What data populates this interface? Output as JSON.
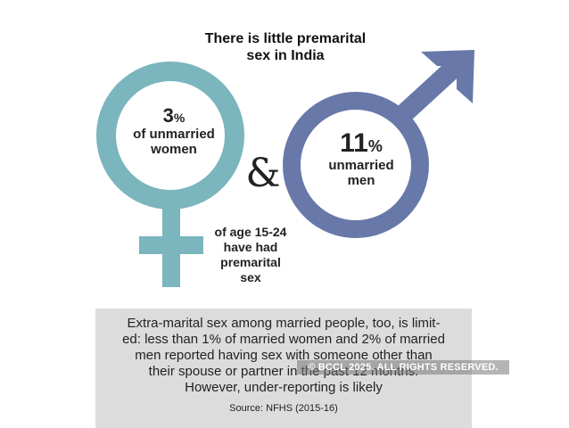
{
  "title_line1": "There is little premarital",
  "title_line2": "sex in India",
  "women": {
    "value": "3",
    "unit": "%",
    "label_line1": "of unmarried",
    "label_line2": "women"
  },
  "men": {
    "value": "11",
    "unit": "%",
    "label_line1": "unmarried",
    "label_line2": "men"
  },
  "ampersand": "&",
  "age_note": {
    "line1": "of age 15-24",
    "line2": "have had",
    "line3": "premarital",
    "line4": "sex"
  },
  "note": {
    "line1": "Extra-marital sex among married people, too, is limit-",
    "line2": "ed: less than 1% of married women and 2% of married",
    "line3": "men reported having sex with someone other than",
    "line4": "their spouse or partner in the past 12 months.",
    "line5": "However, under-reporting is likely",
    "source": "Source: NFHS (2015-16)"
  },
  "watermark": "© BCCL 2025. ALL RIGHTS RESERVED.",
  "colors": {
    "female_symbol": "#7bb5bd",
    "male_symbol": "#6878a8",
    "note_box": "#dcdcdc"
  },
  "icons": {
    "female": "venus-symbol-icon",
    "male": "mars-symbol-icon"
  }
}
